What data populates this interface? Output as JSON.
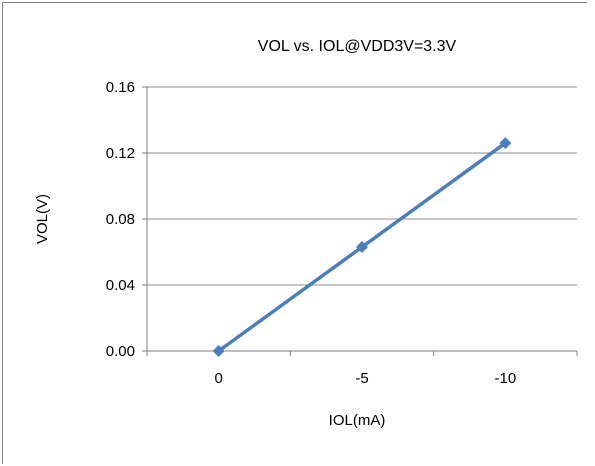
{
  "chart_data": {
    "type": "line",
    "title": "VOL vs. IOL@VDD3V=3.3V",
    "xlabel": "IOL(mA)",
    "ylabel": "VOL(V)",
    "categories": [
      "0",
      "-5",
      "-10"
    ],
    "series": [
      {
        "values": [
          0.0,
          0.063,
          0.126
        ]
      }
    ],
    "ylim": [
      0,
      0.16
    ],
    "yticks": [
      0.0,
      0.04,
      0.08,
      0.12,
      0.16
    ],
    "ytick_labels": [
      "0.00",
      "0.04",
      "0.08",
      "0.12",
      "0.16"
    ],
    "grid": true,
    "colors": {
      "series": "#4a7ebb",
      "grid": "#8c8c8c",
      "axis": "#808080"
    }
  }
}
